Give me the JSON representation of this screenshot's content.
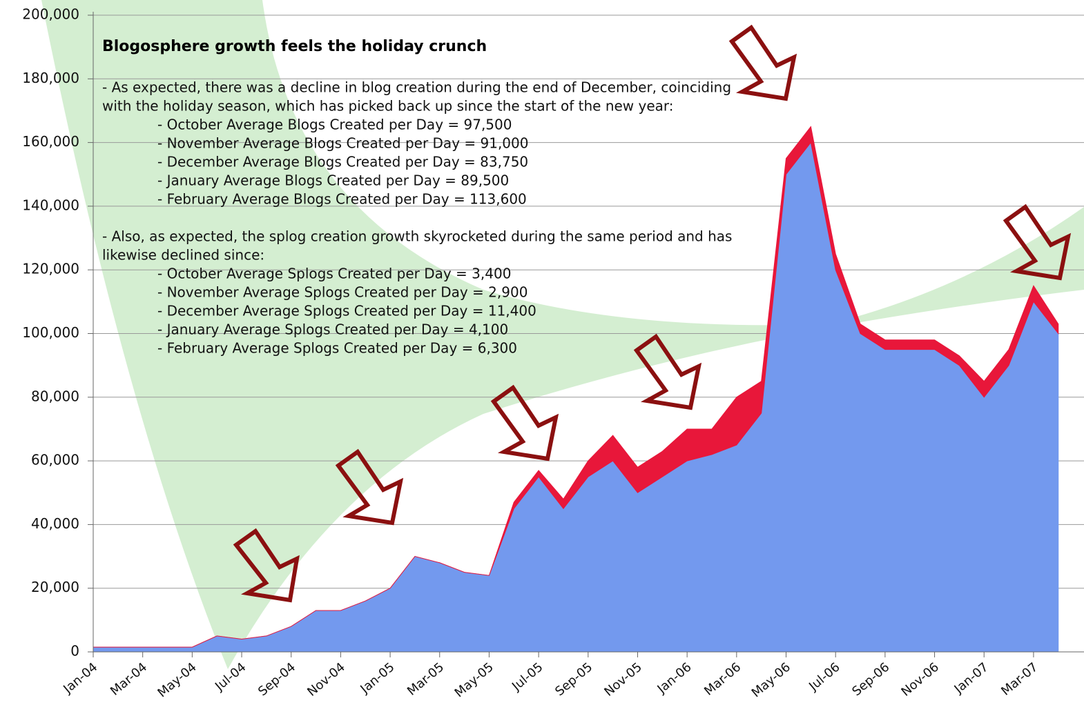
{
  "chart_data": {
    "type": "stacked-area",
    "title": "Blogosphere growth feels the holiday crunch",
    "annotations": [
      "- As expected, there was a decline in blog creation during the end of December, coinciding",
      "with the holiday season, which has picked back up since the start of the new year:",
      "- October Average Blogs Created per Day = 97,500",
      "- November Average Blogs Created per Day = 91,000",
      "- December Average Blogs Created per Day = 83,750",
      "- January Average Blogs Created per Day = 89,500",
      "- February Average Blogs Created per Day = 113,600",
      "- Also, as expected, the splog creation growth skyrocketed during the same period and has",
      "likewise declined since:",
      "- October Average Splogs Created per Day = 3,400",
      "- November Average Splogs Created per Day = 2,900",
      "- December Average Splogs Created per Day = 11,400",
      "- January Average Splogs Created per Day = 4,100",
      "- February Average Splogs Created per Day = 6,300"
    ],
    "categories": [
      "Jan-04",
      null,
      "Mar-04",
      null,
      "May-04",
      null,
      "Jul-04",
      null,
      "Sep-04",
      null,
      "Nov-04",
      null,
      "Jan-05",
      null,
      "Mar-05",
      null,
      "May-05",
      null,
      "Jul-05",
      null,
      "Sep-05",
      null,
      "Nov-05",
      null,
      "Jan-06",
      null,
      "Mar-06",
      null,
      "May-06",
      null,
      "Jul-06",
      null,
      "Sep-06",
      null,
      "Nov-06",
      null,
      "Jan-07",
      null,
      "Mar-07",
      null
    ],
    "series": [
      {
        "color": "#7399ee",
        "values": [
          1500,
          1500,
          1500,
          1500,
          1500,
          5000,
          4000,
          5000,
          8000,
          13000,
          13000,
          16000,
          20000,
          30000,
          28000,
          25000,
          24000,
          45000,
          55000,
          45000,
          55000,
          60000,
          50000,
          55000,
          60000,
          62000,
          65000,
          75000,
          150000,
          160000,
          120000,
          100000,
          95000,
          95000,
          95000,
          90000,
          80000,
          90000,
          110000,
          100000
        ]
      },
      {
        "color": "#e8173a",
        "values": [
          0,
          0,
          0,
          0,
          0,
          0,
          0,
          0,
          0,
          0,
          0,
          0,
          0,
          0,
          0,
          0,
          0,
          2000,
          2000,
          3000,
          5000,
          8000,
          8000,
          8000,
          10000,
          8000,
          15000,
          10000,
          5000,
          5000,
          5000,
          3000,
          3000,
          3000,
          3000,
          3000,
          5000,
          5000,
          5000,
          3000
        ]
      }
    ],
    "ylim": [
      0,
      200000
    ],
    "yticks": [
      0,
      {
        "value": 20000,
        "label": "20,000"
      },
      {
        "value": 40000,
        "label": "40,000"
      },
      {
        "value": 60000,
        "label": "60,000"
      },
      {
        "value": 80000,
        "label": "80,000"
      },
      {
        "value": 100000,
        "label": "100,000"
      },
      {
        "value": 120000,
        "label": "120,000"
      },
      {
        "value": 140000,
        "label": "140,000"
      },
      {
        "value": 160000,
        "label": "160,000"
      },
      {
        "value": 180000,
        "label": "180,000"
      },
      {
        "value": 200000,
        "label": "200,000"
      }
    ],
    "grid": true
  }
}
